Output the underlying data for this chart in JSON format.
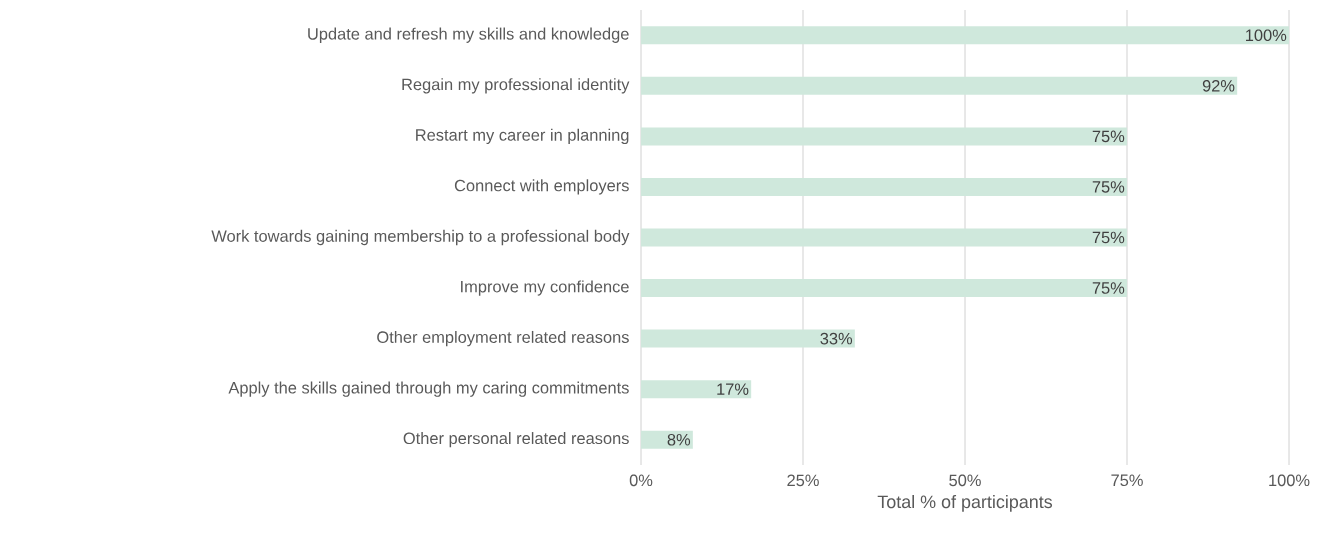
{
  "chart_data": {
    "type": "bar",
    "orientation": "horizontal",
    "xlabel": "Total % of participants",
    "categories": [
      "Update and refresh my skills and knowledge",
      "Regain my professional identity",
      "Restart my career in planning",
      "Connect with employers",
      "Work towards gaining membership to a professional body",
      "Improve my confidence",
      "Other employment related reasons",
      "Apply the skills gained through my caring commitments",
      "Other personal related reasons"
    ],
    "values": [
      100,
      92,
      75,
      75,
      75,
      75,
      33,
      17,
      8
    ],
    "value_labels": [
      "100%",
      "92%",
      "75%",
      "75%",
      "75%",
      "75%",
      "33%",
      "17%",
      "8%"
    ],
    "color": "#cfe8dc",
    "xlim": [
      0,
      100
    ],
    "xticks": [
      {
        "value": 0,
        "label": "0%"
      },
      {
        "value": 25,
        "label": "25%"
      },
      {
        "value": 50,
        "label": "50%"
      },
      {
        "value": 75,
        "label": "75%"
      },
      {
        "value": 100,
        "label": "100%"
      }
    ],
    "grid": "x"
  }
}
